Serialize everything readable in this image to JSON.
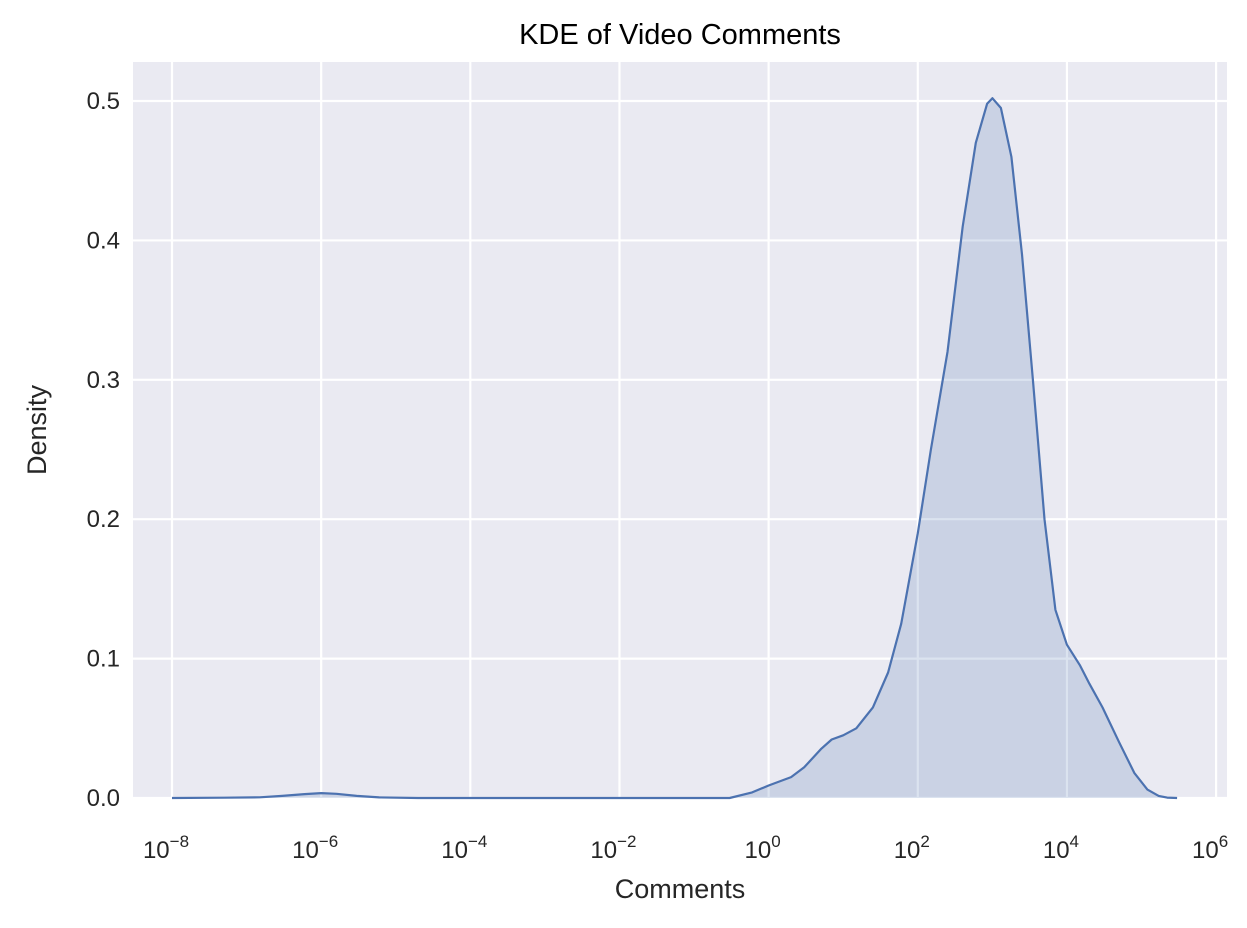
{
  "chart_data": {
    "type": "area",
    "title": "KDE of Video Comments",
    "xlabel": "Comments",
    "ylabel": "Density",
    "xscale": "log",
    "xlim": [
      3e-09,
      1400000.0
    ],
    "ylim": [
      0.0,
      0.528
    ],
    "grid": true,
    "x_ticks": [
      {
        "base": "10",
        "exp": "−8",
        "value": 1e-08
      },
      {
        "base": "10",
        "exp": "−6",
        "value": 1e-06
      },
      {
        "base": "10",
        "exp": "−4",
        "value": 0.0001
      },
      {
        "base": "10",
        "exp": "−2",
        "value": 0.01
      },
      {
        "base": "10",
        "exp": "0",
        "value": 1
      },
      {
        "base": "10",
        "exp": "2",
        "value": 100
      },
      {
        "base": "10",
        "exp": "4",
        "value": 10000
      },
      {
        "base": "10",
        "exp": "6",
        "value": 1000000
      }
    ],
    "y_ticks": [
      {
        "label": "0.0",
        "value": 0.0
      },
      {
        "label": "0.1",
        "value": 0.1
      },
      {
        "label": "0.2",
        "value": 0.2
      },
      {
        "label": "0.3",
        "value": 0.3
      },
      {
        "label": "0.4",
        "value": 0.4
      },
      {
        "label": "0.5",
        "value": 0.5
      }
    ],
    "series": [
      {
        "color": "#4c72b0",
        "fill_opacity": 0.2,
        "x": [
          1e-08,
          5e-08,
          1.5e-07,
          3e-07,
          6e-07,
          1e-06,
          1.6e-06,
          3e-06,
          6e-06,
          2e-05,
          0.0001,
          0.01,
          0.3,
          0.6,
          1,
          2,
          3,
          5,
          7,
          10,
          15,
          25,
          40,
          60,
          100,
          150,
          250,
          400,
          600,
          850,
          1000,
          1300,
          1800,
          2500,
          3500,
          5000,
          7000,
          10000,
          15000,
          20000,
          30000,
          50000,
          80000,
          120000,
          170000,
          220000,
          300000
        ],
        "y": [
          0.0,
          0.0002,
          0.0005,
          0.0015,
          0.0028,
          0.0035,
          0.003,
          0.0015,
          0.0004,
          0.0,
          0.0,
          0.0,
          0.0,
          0.004,
          0.009,
          0.015,
          0.022,
          0.035,
          0.042,
          0.045,
          0.05,
          0.065,
          0.09,
          0.125,
          0.19,
          0.25,
          0.32,
          0.41,
          0.47,
          0.498,
          0.502,
          0.495,
          0.46,
          0.39,
          0.3,
          0.2,
          0.135,
          0.11,
          0.095,
          0.082,
          0.065,
          0.04,
          0.018,
          0.006,
          0.0015,
          0.0003,
          0.0
        ]
      }
    ]
  }
}
